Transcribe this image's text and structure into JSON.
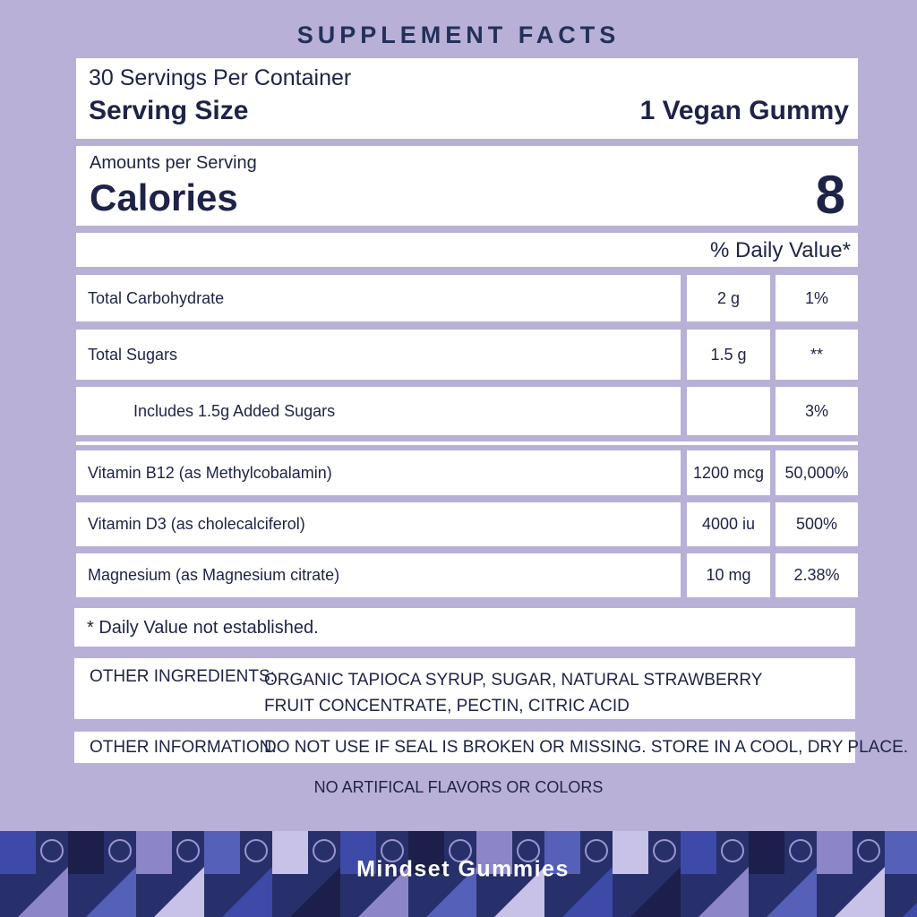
{
  "title": "SUPPLEMENT FACTS",
  "servings": "30 Servings Per Container",
  "serving_size": {
    "label": "Serving Size",
    "value": "1 Vegan Gummy"
  },
  "calories": {
    "caption": "Amounts per Serving",
    "label": "Calories",
    "value": "8"
  },
  "dv_header": "% Daily Value*",
  "nutrients": [
    {
      "name": "Total Carbohydrate",
      "amount": "2 g",
      "dv": "1%"
    },
    {
      "name": "Total Sugars",
      "amount": "1.5 g",
      "dv": "**"
    },
    {
      "name": "Includes 1.5g Added Sugars",
      "dv": "3%"
    }
  ],
  "vitamins": [
    {
      "name": "Vitamin B12 (as Methylcobalamin)",
      "amount": "1200 mcg",
      "dv": "50,000%"
    },
    {
      "name": "Vitamin D3 (as cholecalciferol)",
      "amount": "4000 iu",
      "dv": "500%"
    },
    {
      "name": "Magnesium  (as Magnesium citrate)",
      "amount": "10 mg",
      "dv": "2.38%"
    }
  ],
  "footnote": "* Daily Value not established.",
  "other_ingredients": {
    "label": "OTHER INGREDIENTS:",
    "text": "ORGANIC TAPIOCA SYRUP, SUGAR, NATURAL STRAWBERRY FRUIT CONCENTRATE, PECTIN, CITRIC ACID"
  },
  "other_information": {
    "label": "OTHER INFORMATION:",
    "text": "DO NOT USE IF SEAL IS BROKEN OR MISSING. STORE IN A COOL, DRY PLACE."
  },
  "note": "NO ARTIFICAL FLAVORS OR COLORS",
  "brand": "Mindset Gummies"
}
